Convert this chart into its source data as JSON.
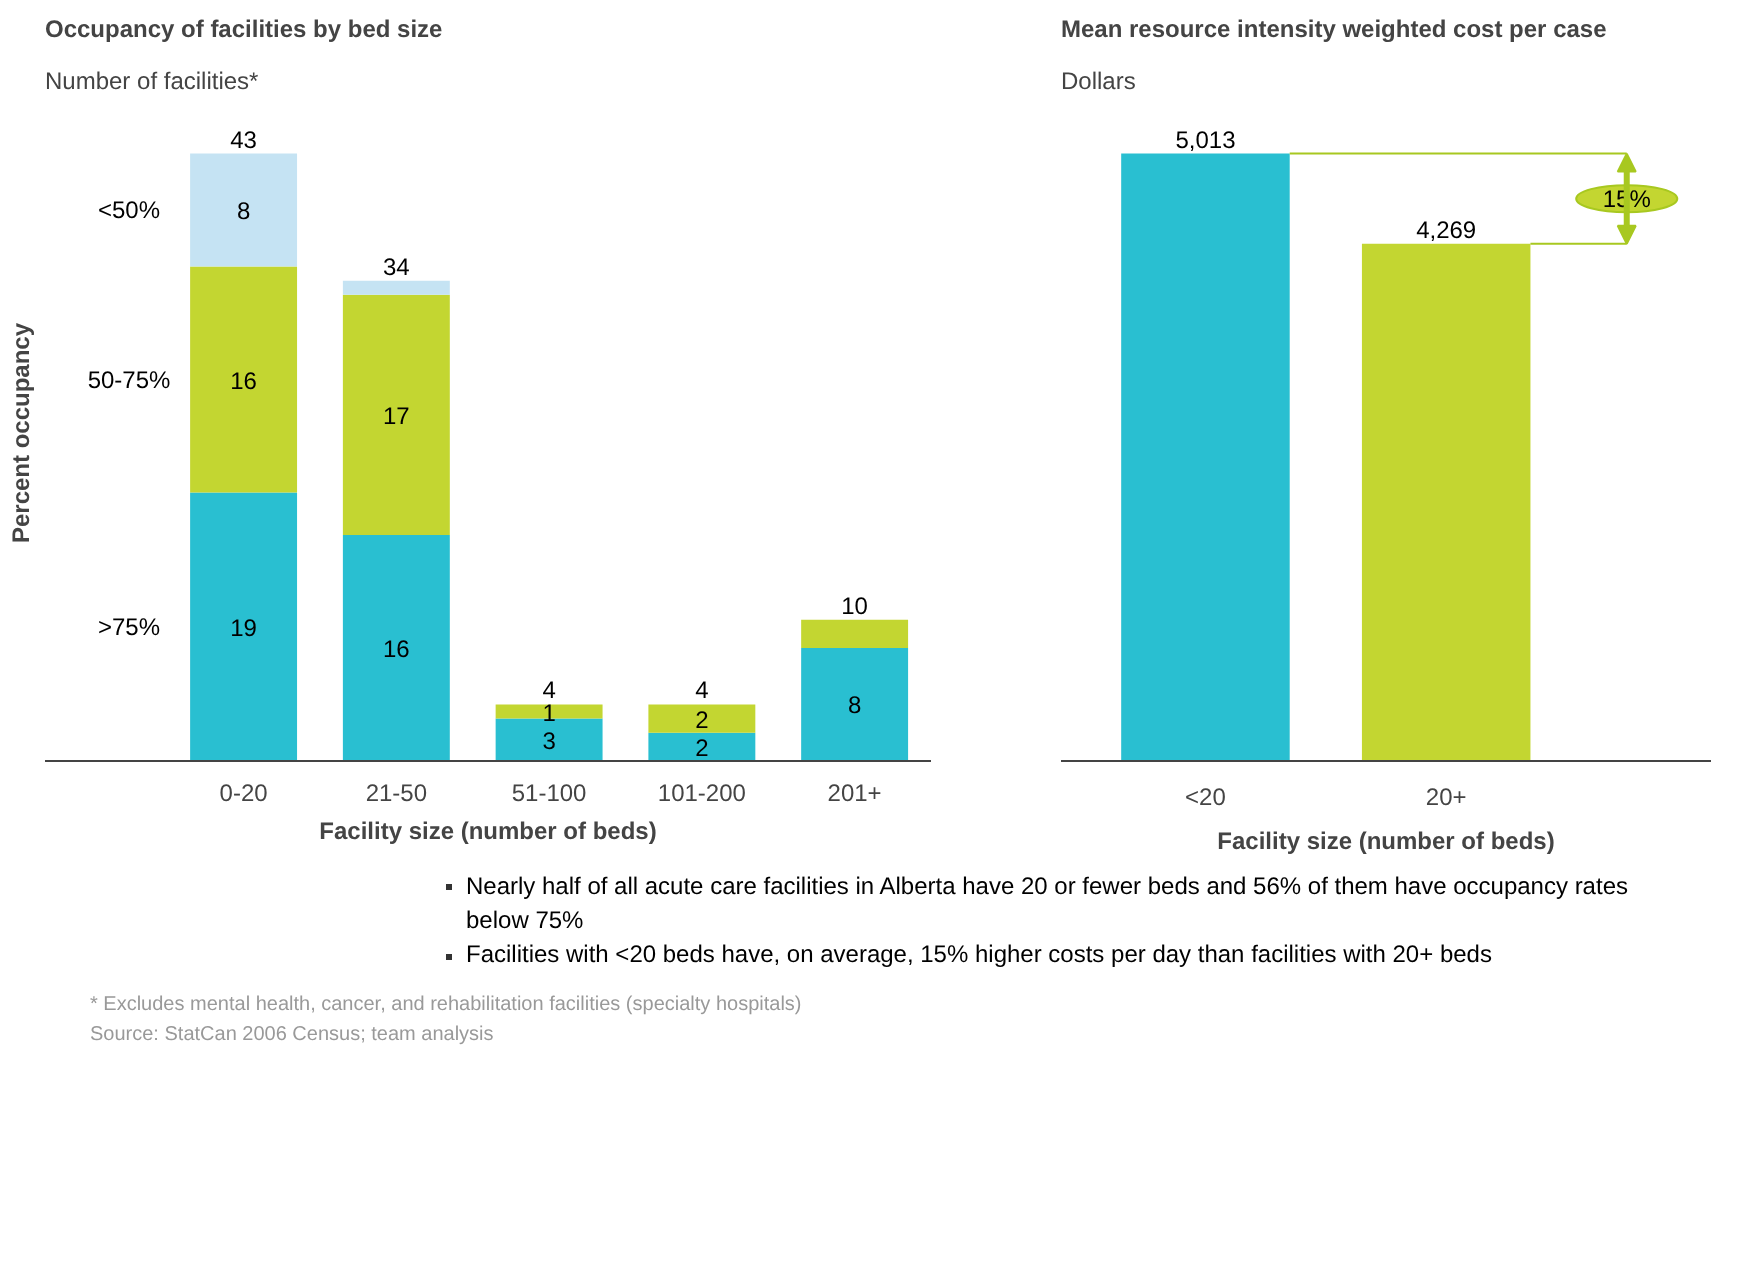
{
  "chart_data": [
    {
      "type": "bar",
      "stacked": true,
      "title": "Occupancy of facilities by bed size",
      "subtitle": "Number of facilities*",
      "ylabel": "Percent occupancy",
      "xlabel": "Facility size (number of beds)",
      "categories": [
        "0-20",
        "21-50",
        "51-100",
        "101-200",
        "201+"
      ],
      "series": [
        {
          "name": ">75%",
          "color": "#29bfd1",
          "values": [
            19,
            16,
            3,
            2,
            8
          ],
          "value_labels": [
            "19",
            "16",
            "3",
            "2",
            "8"
          ]
        },
        {
          "name": "50-75%",
          "color": "#c3d631",
          "values": [
            16,
            17,
            1,
            2,
            2
          ],
          "value_labels": [
            "16",
            "17",
            "1",
            "2",
            null
          ]
        },
        {
          "name": "<50%",
          "color": "#c5e3f3",
          "values": [
            8,
            1,
            0,
            0,
            0
          ],
          "value_labels": [
            "8",
            null,
            null,
            null,
            null
          ]
        }
      ],
      "totals": [
        "43",
        "34",
        "4",
        "4",
        "10"
      ],
      "annotations": [
        "* Excludes mental health, cancer, and rehabilitation facilities (specialty hospitals)",
        "Source:  StatCan 2006 Census; team analysis"
      ]
    },
    {
      "type": "bar",
      "title": "Mean resource intensity weighted cost per case",
      "subtitle": "Dollars",
      "xlabel": "Facility size (number of beds)",
      "categories": [
        "<20",
        "20+"
      ],
      "values": [
        5013,
        4269
      ],
      "colors": [
        "#29bfd1",
        "#c3d631"
      ],
      "value_labels": [
        "5,013",
        "4,269"
      ],
      "annotations": [
        "15%",
        "Nearly half of all acute care facilities in Alberta have 20 or fewer beds and 56% of them have occupancy rates below 75%",
        "Facilities with <20 beds have, on average, 15% higher costs per day than facilities with 20+ beds"
      ]
    }
  ]
}
